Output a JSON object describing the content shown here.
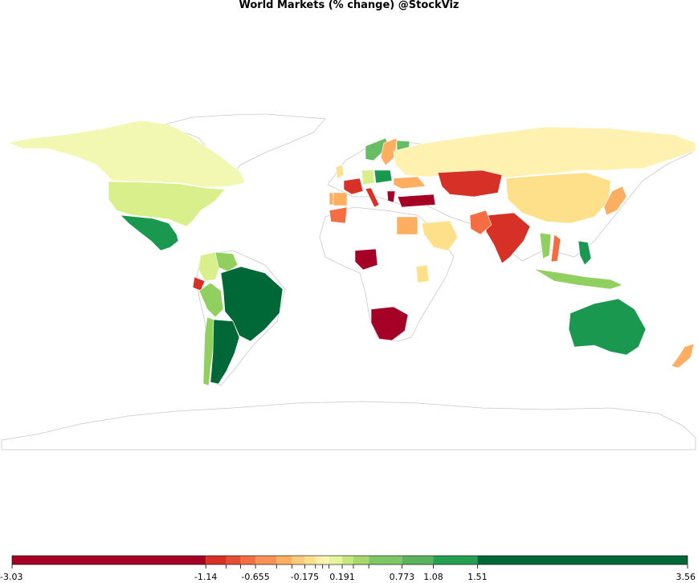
{
  "title": "World Markets (% change) @StockViz",
  "legend": {
    "breaks": [
      -3.03,
      -1.14,
      -0.94,
      -0.8,
      -0.655,
      -0.45,
      -0.3,
      -0.175,
      -0.07,
      0.0,
      0.06,
      0.191,
      0.3,
      0.45,
      0.773,
      1.08,
      1.51,
      3.56
    ],
    "colors": [
      "#a50026",
      "#d73027",
      "#e44e34",
      "#f46d43",
      "#f99055",
      "#fdae61",
      "#fecb7e",
      "#fee08b",
      "#fff0a6",
      "#f6f9b5",
      "#e6f59d",
      "#c7e77f",
      "#a6d96a",
      "#7fc766",
      "#5bb35f",
      "#279f53",
      "#006837"
    ],
    "labels": [
      {
        "value": -3.03,
        "text": "-3.03"
      },
      {
        "value": -1.14,
        "text": "-1.14"
      },
      {
        "value": -0.655,
        "text": "-0.655"
      },
      {
        "value": -0.175,
        "text": "-0.175"
      },
      {
        "value": 0.191,
        "text": "0.191"
      },
      {
        "value": 0.773,
        "text": "0.773"
      },
      {
        "value": 1.08,
        "text": "1.08"
      },
      {
        "value": 1.51,
        "text": "1.51"
      },
      {
        "value": 3.56,
        "text": "3.56"
      }
    ]
  },
  "countries": [
    {
      "name": "United States",
      "color": "#d9ef8b"
    },
    {
      "name": "Canada",
      "color": "#f2f8b2"
    },
    {
      "name": "Mexico",
      "color": "#1a9850"
    },
    {
      "name": "Brazil",
      "color": "#006837"
    },
    {
      "name": "Argentina",
      "color": "#006837"
    },
    {
      "name": "Chile",
      "color": "#91cf60"
    },
    {
      "name": "Peru",
      "color": "#91cf60"
    },
    {
      "name": "Colombia",
      "color": "#d9ef8b"
    },
    {
      "name": "Venezuela",
      "color": "#91cf60"
    },
    {
      "name": "Ecuador",
      "color": "#d73027"
    },
    {
      "name": "Russia",
      "color": "#fff2b0"
    },
    {
      "name": "China",
      "color": "#fee08b"
    },
    {
      "name": "Kazakhstan",
      "color": "#d73027"
    },
    {
      "name": "India",
      "color": "#d73027"
    },
    {
      "name": "Pakistan",
      "color": "#f46d43"
    },
    {
      "name": "Saudi Arabia",
      "color": "#fee08b"
    },
    {
      "name": "Egypt",
      "color": "#fdae61"
    },
    {
      "name": "Turkey",
      "color": "#a50026"
    },
    {
      "name": "Nigeria",
      "color": "#a50026"
    },
    {
      "name": "South Africa",
      "color": "#a50026"
    },
    {
      "name": "Kenya",
      "color": "#fee08b"
    },
    {
      "name": "Australia",
      "color": "#1a9850"
    },
    {
      "name": "New Zealand",
      "color": "#fdae61"
    },
    {
      "name": "Japan",
      "color": "#fdae61"
    },
    {
      "name": "Indonesia",
      "color": "#91cf60"
    },
    {
      "name": "Philippines",
      "color": "#1a9850"
    },
    {
      "name": "Thailand",
      "color": "#91cf60"
    },
    {
      "name": "Vietnam",
      "color": "#f46d43"
    },
    {
      "name": "France",
      "color": "#d73027"
    },
    {
      "name": "Spain",
      "color": "#fdae61"
    },
    {
      "name": "Portugal",
      "color": "#fdae61"
    },
    {
      "name": "Germany",
      "color": "#d9ef8b"
    },
    {
      "name": "United Kingdom",
      "color": "#fee08b"
    },
    {
      "name": "Sweden",
      "color": "#fdae61"
    },
    {
      "name": "Finland",
      "color": "#66bd63"
    },
    {
      "name": "Norway",
      "color": "#66bd63"
    },
    {
      "name": "Poland",
      "color": "#1a9850"
    },
    {
      "name": "Italy",
      "color": "#d73027"
    },
    {
      "name": "Greece",
      "color": "#a50026"
    },
    {
      "name": "Ukraine",
      "color": "#fdae61"
    },
    {
      "name": "Morocco",
      "color": "#f46d43"
    },
    {
      "name": "Greenland",
      "color": "#ffffff"
    },
    {
      "name": "Antarctica",
      "color": "#ffffff"
    }
  ]
}
